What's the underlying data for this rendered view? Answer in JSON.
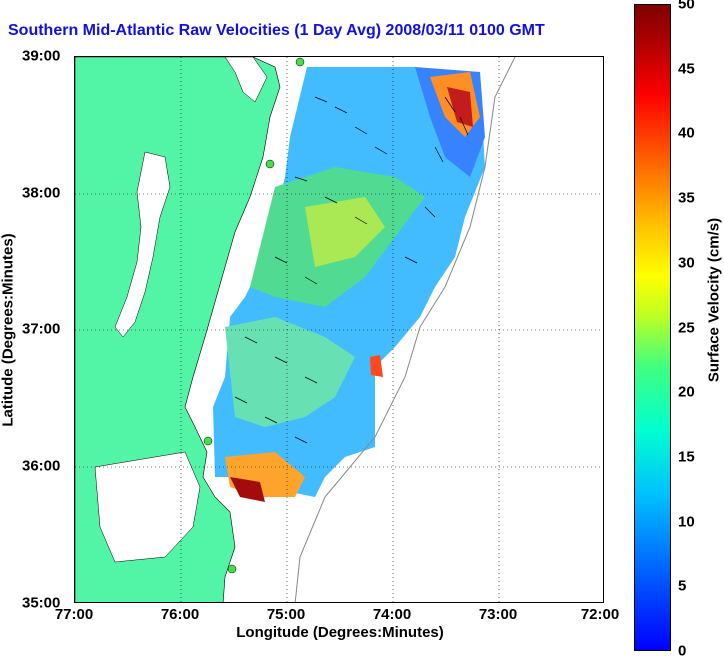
{
  "title": "Southern Mid-Atlantic Raw Velocities (1 Day Avg) 2008/03/11 0100 GMT",
  "xlabel": "Longitude (Degrees:Minutes)",
  "ylabel": "Latitude (Degrees:Minutes)",
  "colorbar_label": "Surface Velocity (cm/s)",
  "colors": {
    "land": "#52f5a5",
    "title": "#1010e6",
    "arrows": "#000000"
  },
  "chart_data": {
    "type": "heatmap",
    "title": "Southern Mid-Atlantic Raw Velocities (1 Day Avg) 2008/03/11 0100 GMT",
    "xlabel": "Longitude (Degrees:Minutes)",
    "ylabel": "Latitude (Degrees:Minutes)",
    "x_ticks": [
      "77:00",
      "76:00",
      "75:00",
      "74:00",
      "73:00",
      "72:00"
    ],
    "y_ticks": [
      "39:00",
      "38:00",
      "37:00",
      "36:00",
      "35:00"
    ],
    "xlim": [
      -77,
      -72
    ],
    "ylim": [
      35,
      39
    ],
    "colorbar": {
      "label": "Surface Velocity (cm/s)",
      "ticks": [
        0,
        5,
        10,
        15,
        20,
        25,
        30,
        35,
        40,
        45,
        50
      ],
      "range": [
        0,
        50
      ]
    },
    "grid": true
  }
}
